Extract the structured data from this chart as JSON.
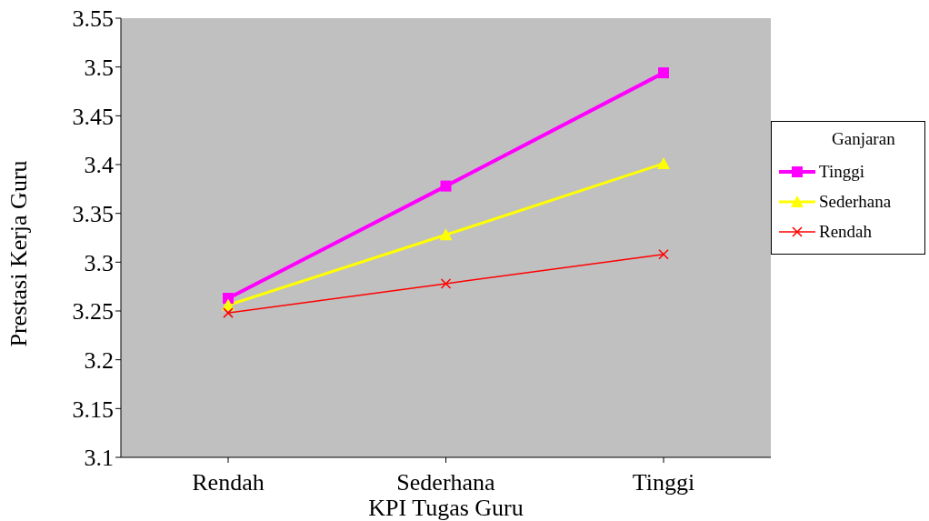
{
  "chart_data": {
    "type": "line",
    "xlabel": "KPI Tugas Guru",
    "ylabel": "Prestasi Kerja Guru",
    "legend_title": "Ganjaran",
    "categories": [
      "Rendah",
      "Sederhana",
      "Tinggi"
    ],
    "series": [
      {
        "name": "Tinggi",
        "color": "#ff00ff",
        "marker": "square",
        "values": [
          3.263,
          3.378,
          3.494
        ]
      },
      {
        "name": "Sederhana",
        "color": "#ffff00",
        "marker": "triangle",
        "values": [
          3.256,
          3.328,
          3.401
        ]
      },
      {
        "name": "Rendah",
        "color": "#ff0000",
        "marker": "cross",
        "values": [
          3.248,
          3.278,
          3.308
        ]
      }
    ],
    "ylim": [
      3.1,
      3.55
    ],
    "yticks": [
      3.1,
      3.15,
      3.2,
      3.25,
      3.3,
      3.35,
      3.4,
      3.45,
      3.5,
      3.55
    ],
    "grid": false,
    "legend": "right"
  }
}
